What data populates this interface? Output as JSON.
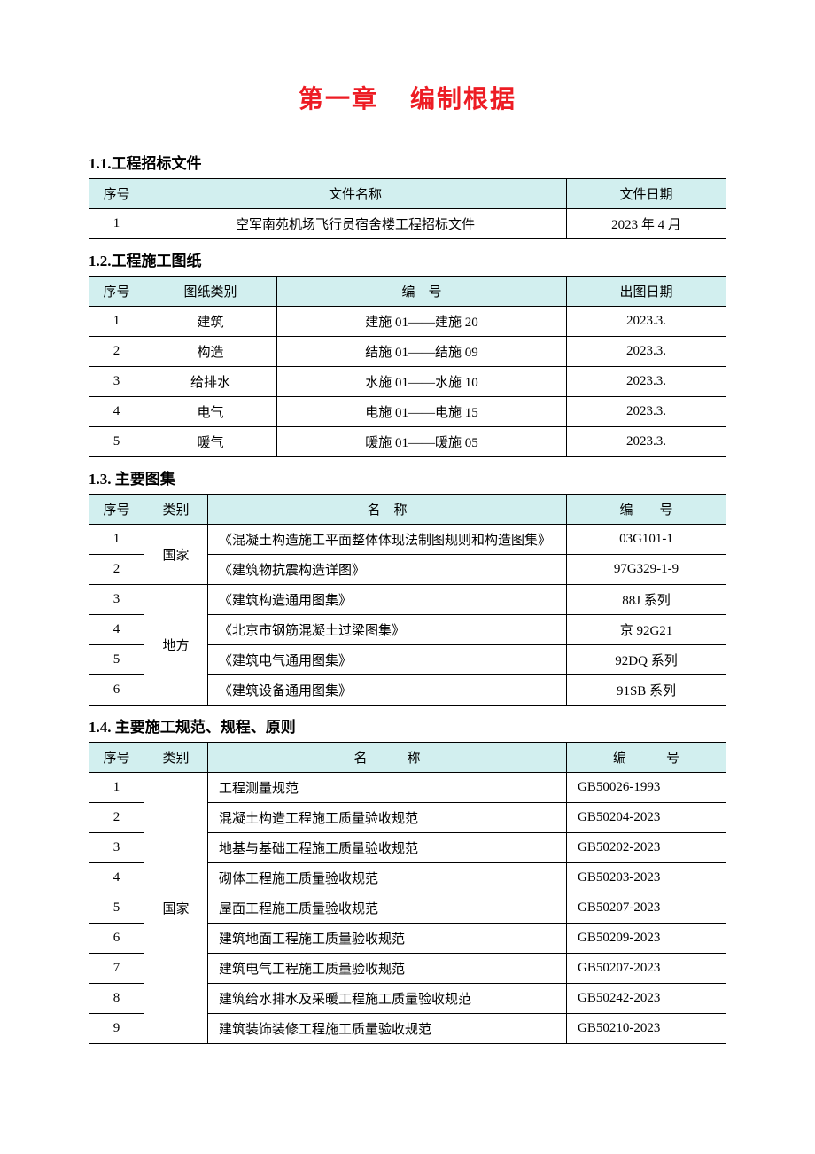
{
  "colors": {
    "title": "#ed1c24",
    "header_bg": "#d2efef",
    "border": "#000000",
    "text": "#000000",
    "page_bg": "#ffffff"
  },
  "typography": {
    "title_fontsize_pt": 21,
    "heading_fontsize_pt": 13,
    "cell_fontsize_pt": 11,
    "title_family": "SimHei",
    "body_family": "SimSun"
  },
  "chapter": {
    "label_a": "第一章",
    "label_b": "编制根据"
  },
  "sections": {
    "s1": {
      "heading": "1.1.工程招标文件",
      "columns": [
        "序号",
        "文件名称",
        "文件日期"
      ],
      "rows": [
        {
          "no": "1",
          "name": "空军南苑机场飞行员宿舍楼工程招标文件",
          "date": "2023 年 4 月"
        }
      ]
    },
    "s2": {
      "heading": "1.2.工程施工图纸",
      "columns": [
        "序号",
        "图纸类别",
        "编　号",
        "出图日期"
      ],
      "rows": [
        {
          "no": "1",
          "cat": "建筑",
          "code": "建施 01——建施 20",
          "date": "2023.3."
        },
        {
          "no": "2",
          "cat": "构造",
          "code": "结施 01——结施 09",
          "date": "2023.3."
        },
        {
          "no": "3",
          "cat": "给排水",
          "code": "水施 01——水施 10",
          "date": "2023.3."
        },
        {
          "no": "4",
          "cat": "电气",
          "code": "电施 01——电施 15",
          "date": "2023.3."
        },
        {
          "no": "5",
          "cat": "暖气",
          "code": "暖施 01——暖施 05",
          "date": "2023.3."
        }
      ]
    },
    "s3": {
      "heading": "1.3.  主要图集",
      "columns": [
        "序号",
        "类别",
        "名　称",
        "编　　号"
      ],
      "groups": [
        {
          "cat": "国家",
          "rows": [
            {
              "no": "1",
              "name": "《混凝土构造施工平面整体体现法制图规则和构造图集》",
              "code": "03G101-1"
            },
            {
              "no": "2",
              "name": "《建筑物抗震构造详图》",
              "code": "97G329-1-9"
            }
          ]
        },
        {
          "cat": "地方",
          "rows": [
            {
              "no": "3",
              "name": "《建筑构造通用图集》",
              "code": "88J 系列"
            },
            {
              "no": "4",
              "name": "《北京市钢筋混凝土过梁图集》",
              "code": "京 92G21"
            },
            {
              "no": "5",
              "name": "《建筑电气通用图集》",
              "code": "92DQ 系列"
            },
            {
              "no": "6",
              "name": "《建筑设备通用图集》",
              "code": "91SB 系列"
            }
          ]
        }
      ]
    },
    "s4": {
      "heading": "1.4.  主要施工规范、规程、原则",
      "columns": [
        "序号",
        "类别",
        "名　　　称",
        "编　　　号"
      ],
      "groups": [
        {
          "cat": "国家",
          "rows": [
            {
              "no": "1",
              "name": "工程测量规范",
              "code": "GB50026-1993"
            },
            {
              "no": "2",
              "name": "混凝土构造工程施工质量验收规范",
              "code": "GB50204-2023"
            },
            {
              "no": "3",
              "name": "地基与基础工程施工质量验收规范",
              "code": "GB50202-2023"
            },
            {
              "no": "4",
              "name": "砌体工程施工质量验收规范",
              "code": "GB50203-2023"
            },
            {
              "no": "5",
              "name": "屋面工程施工质量验收规范",
              "code": "GB50207-2023"
            },
            {
              "no": "6",
              "name": "建筑地面工程施工质量验收规范",
              "code": "GB50209-2023"
            },
            {
              "no": "7",
              "name": "建筑电气工程施工质量验收规范",
              "code": "GB50207-2023"
            },
            {
              "no": "8",
              "name": "建筑给水排水及采暖工程施工质量验收规范",
              "code": "GB50242-2023"
            },
            {
              "no": "9",
              "name": "建筑装饰装修工程施工质量验收规范",
              "code": "GB50210-2023"
            }
          ]
        }
      ]
    }
  }
}
